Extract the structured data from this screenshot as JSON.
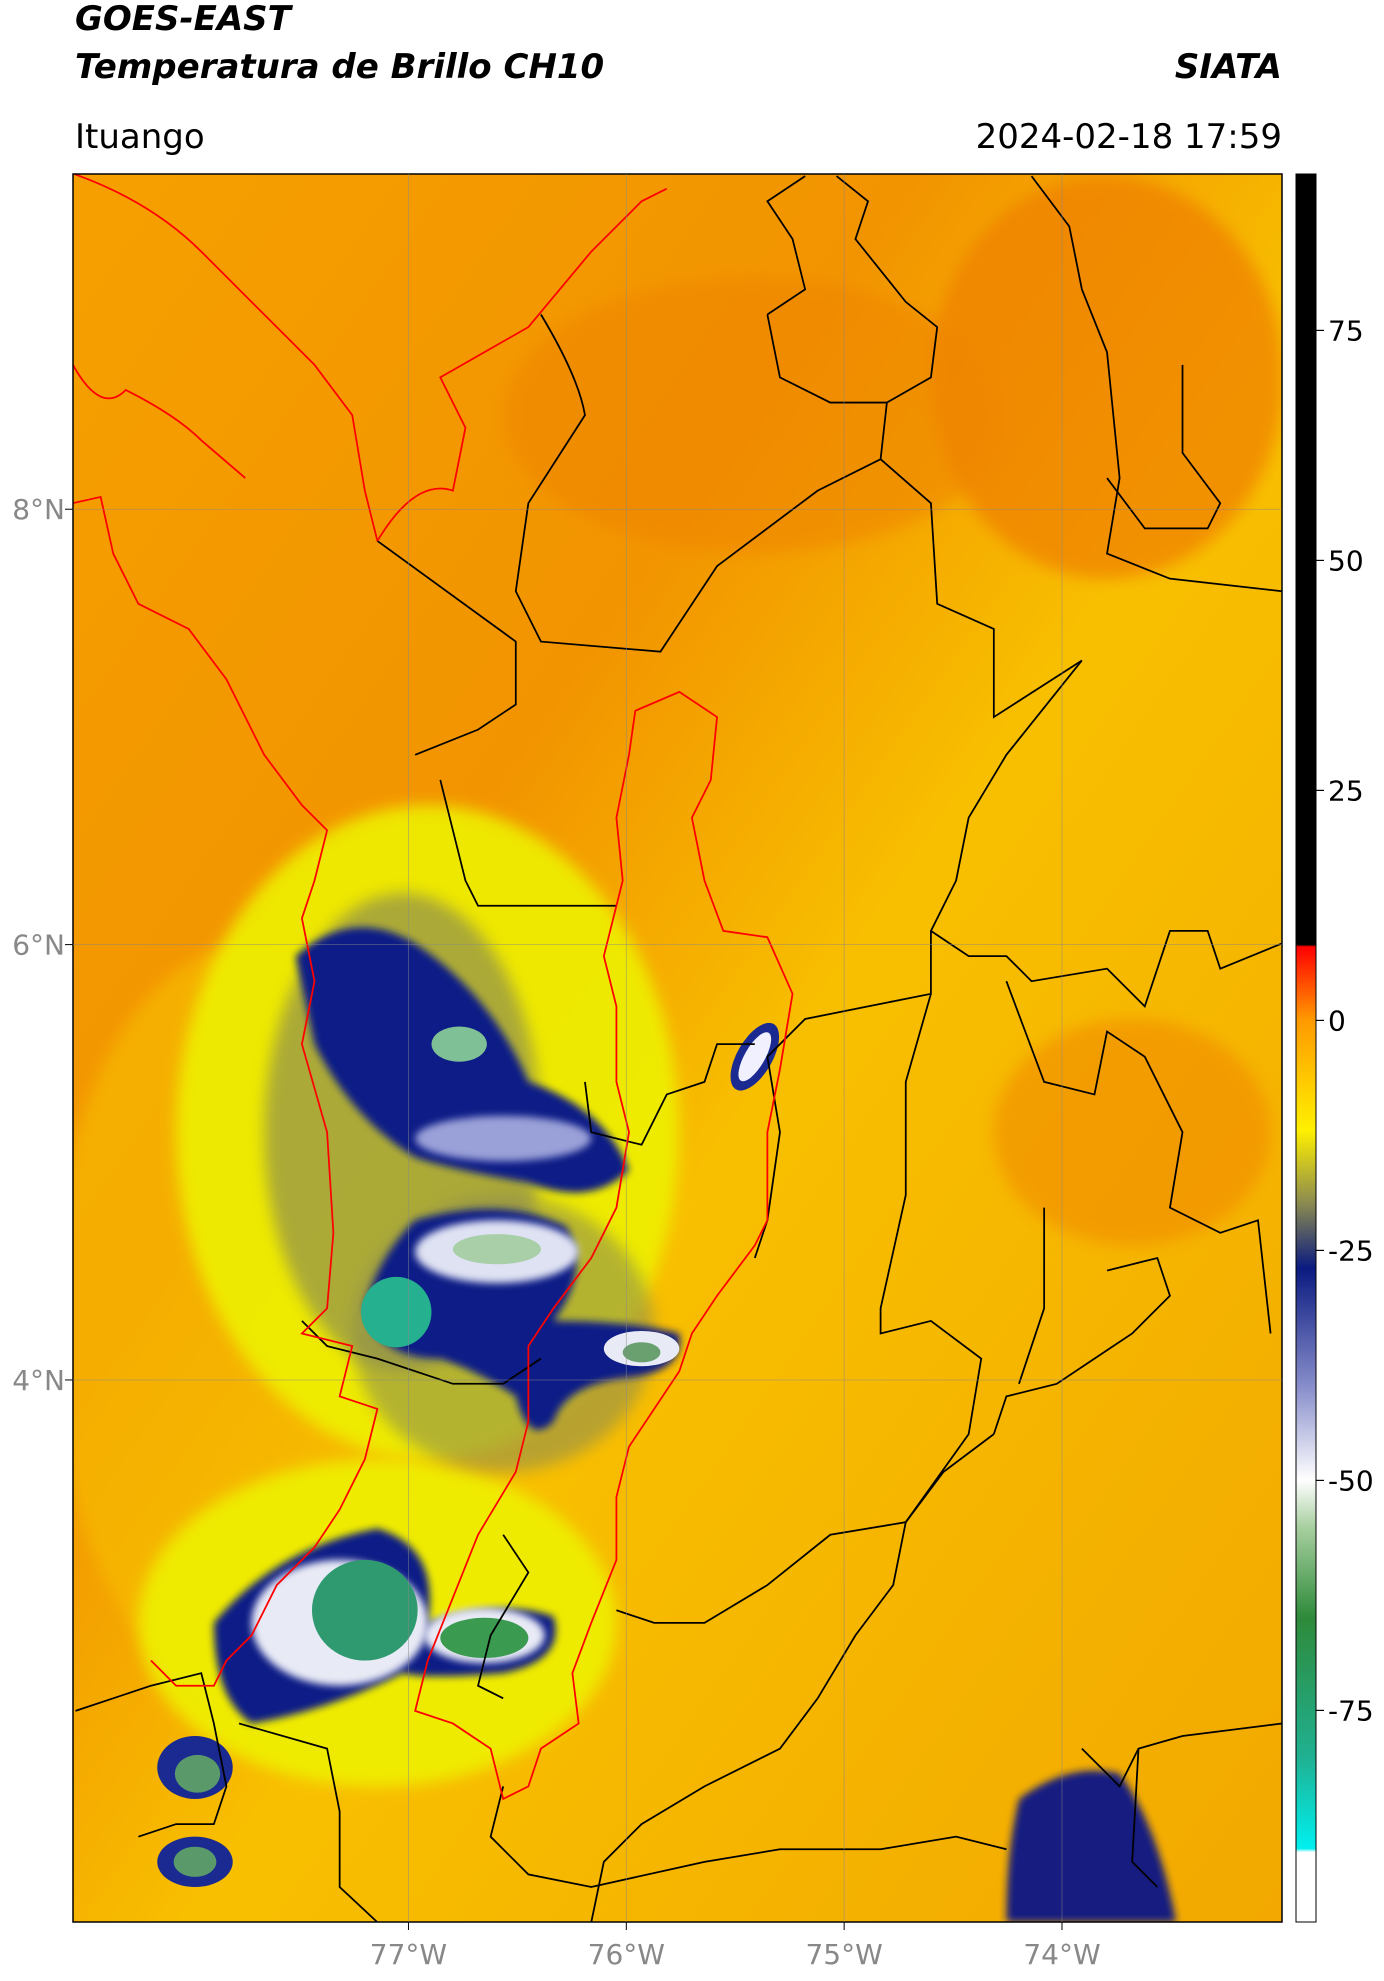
{
  "map": {
    "title": "GOES-EAST",
    "subtitle": "Temperatura de Brillo CH10",
    "source": "SIATA",
    "region": "Ituango",
    "datetime": "2024-02-18 17:59",
    "xlim": [
      -78.54,
      -72.99
    ],
    "ylim": [
      1.51,
      9.54
    ],
    "xticks": [
      {
        "value": -77,
        "label": "77°W"
      },
      {
        "value": -76,
        "label": "76°W"
      },
      {
        "value": -75,
        "label": "75°W"
      },
      {
        "value": -74,
        "label": "74°W"
      }
    ],
    "yticks": [
      {
        "value": 8,
        "label": "8°N"
      },
      {
        "value": 6,
        "label": "6°N"
      },
      {
        "value": 4,
        "label": "4°N"
      }
    ],
    "grid": true,
    "colorbar": {
      "lim": [
        -98,
        92
      ],
      "ticks": [
        75,
        50,
        25,
        0,
        -25,
        -50,
        -75
      ]
    }
  }
}
